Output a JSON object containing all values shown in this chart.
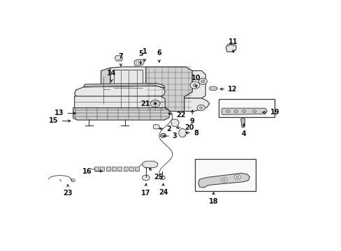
{
  "background_color": "#ffffff",
  "fig_width": 4.89,
  "fig_height": 3.6,
  "dpi": 100,
  "line_color": "#333333",
  "label_positions": {
    "1": [
      0.385,
      0.825,
      0.385,
      0.87
    ],
    "2": [
      0.43,
      0.49,
      0.468,
      0.49
    ],
    "3": [
      0.445,
      0.452,
      0.49,
      0.452
    ],
    "4": [
      0.76,
      0.53,
      0.76,
      0.48
    ],
    "5": [
      0.37,
      0.81,
      0.37,
      0.86
    ],
    "6": [
      0.44,
      0.82,
      0.44,
      0.865
    ],
    "7": [
      0.295,
      0.8,
      0.295,
      0.845
    ],
    "8": [
      0.53,
      0.47,
      0.57,
      0.468
    ],
    "9": [
      0.565,
      0.6,
      0.565,
      0.545
    ],
    "10": [
      0.58,
      0.69,
      0.58,
      0.735
    ],
    "11": [
      0.72,
      0.87,
      0.72,
      0.92
    ],
    "12": [
      0.66,
      0.695,
      0.7,
      0.695
    ],
    "13": [
      0.135,
      0.57,
      0.08,
      0.57
    ],
    "14": [
      0.26,
      0.72,
      0.26,
      0.76
    ],
    "15": [
      0.115,
      0.53,
      0.06,
      0.53
    ],
    "16": [
      0.235,
      0.27,
      0.185,
      0.27
    ],
    "17": [
      0.39,
      0.22,
      0.39,
      0.175
    ],
    "18": [
      0.645,
      0.175,
      0.645,
      0.13
    ],
    "19": [
      0.82,
      0.575,
      0.86,
      0.575
    ],
    "20": [
      0.495,
      0.495,
      0.535,
      0.495
    ],
    "21": [
      0.44,
      0.62,
      0.405,
      0.62
    ],
    "22": [
      0.465,
      0.57,
      0.505,
      0.56
    ],
    "23": [
      0.095,
      0.215,
      0.095,
      0.175
    ],
    "24": [
      0.455,
      0.22,
      0.455,
      0.178
    ],
    "25": [
      0.395,
      0.295,
      0.42,
      0.258
    ]
  }
}
